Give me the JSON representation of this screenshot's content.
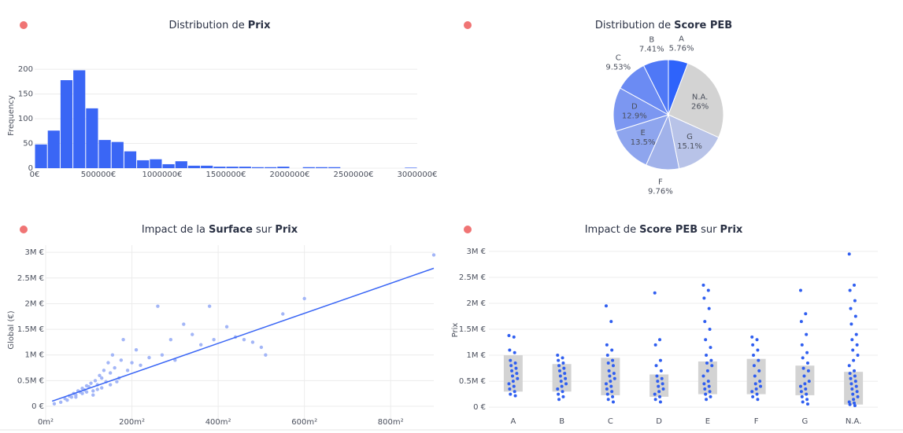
{
  "chart_data": [
    {
      "type": "histogram",
      "title_parts": [
        {
          "text": "Distribution de",
          "bold": false
        },
        {
          "text": "Prix",
          "bold": true
        }
      ],
      "ylabel": "Frequency",
      "color": "#3a66f5",
      "grid": true,
      "bins": [
        0,
        100000,
        200000,
        300000,
        400000,
        500000,
        600000,
        700000,
        800000,
        900000,
        1000000,
        1100000,
        1200000,
        1300000,
        1400000,
        1500000,
        1600000,
        1700000,
        1800000,
        1900000,
        2000000,
        2100000,
        2200000,
        2300000,
        2400000,
        2500000,
        2600000,
        2700000,
        2800000,
        2900000,
        3000000
      ],
      "counts": [
        48,
        76,
        178,
        198,
        121,
        57,
        53,
        34,
        16,
        18,
        8,
        14,
        5,
        5,
        3,
        3,
        3,
        2,
        2,
        3,
        0,
        2,
        2,
        2,
        0,
        0,
        0,
        0,
        0,
        1
      ],
      "xlim": [
        0,
        3000000
      ],
      "xticks": [
        {
          "value": 0,
          "label": "0€"
        },
        {
          "value": 500000,
          "label": "500000€"
        },
        {
          "value": 1000000,
          "label": "1000000€"
        },
        {
          "value": 1500000,
          "label": "1500000€"
        },
        {
          "value": 2000000,
          "label": "2000000€"
        },
        {
          "value": 2500000,
          "label": "2500000€"
        },
        {
          "value": 3000000,
          "label": "3000000€"
        }
      ],
      "ylim": [
        0,
        213
      ],
      "yticks": [
        0,
        50,
        100,
        150,
        200
      ]
    },
    {
      "type": "pie",
      "title_parts": [
        {
          "text": "Distribution de",
          "bold": false
        },
        {
          "text": "Score PEB",
          "bold": true
        }
      ],
      "categories": [
        "A",
        "N.A.",
        "G",
        "F",
        "E",
        "D",
        "C",
        "B"
      ],
      "values": [
        5.76,
        26,
        15.1,
        9.76,
        13.5,
        12.9,
        9.53,
        7.41
      ],
      "value_labels": [
        "5.76%",
        "26%",
        "15.1%",
        "9.76%",
        "13.5%",
        "12.9%",
        "9.53%",
        "7.41%"
      ],
      "colors": [
        "#2e63fb",
        "#d3d3d3",
        "#b8c3e8",
        "#a1b2ea",
        "#8ea5ee",
        "#7c97f1",
        "#6b8bf3",
        "#4f78f6"
      ]
    },
    {
      "type": "scatter",
      "title_parts": [
        {
          "text": "Impact de la",
          "bold": false
        },
        {
          "text": "Surface",
          "bold": true
        },
        {
          "text": "sur",
          "bold": false
        },
        {
          "text": "Prix",
          "bold": true
        }
      ],
      "ylabel": "Global (€)",
      "color": "#a3b6f7",
      "line_color": "#3a66f5",
      "grid": true,
      "xgrid": true,
      "x": [
        20,
        35,
        45,
        50,
        55,
        60,
        65,
        70,
        75,
        80,
        85,
        90,
        95,
        100,
        105,
        110,
        115,
        120,
        125,
        130,
        135,
        140,
        145,
        150,
        155,
        160,
        170,
        175,
        180,
        190,
        200,
        210,
        220,
        240,
        260,
        270,
        290,
        300,
        320,
        340,
        360,
        380,
        390,
        420,
        440,
        460,
        480,
        500,
        510,
        550,
        600,
        900,
        110,
        95,
        130,
        150,
        85,
        70,
        120,
        165
      ],
      "y": [
        50000,
        80000,
        150000,
        120000,
        200000,
        180000,
        250000,
        220000,
        300000,
        280000,
        350000,
        320000,
        400000,
        380000,
        450000,
        300000,
        500000,
        420000,
        600000,
        550000,
        700000,
        480000,
        850000,
        650000,
        1000000,
        750000,
        550000,
        900000,
        1300000,
        700000,
        850000,
        1100000,
        800000,
        950000,
        1950000,
        1000000,
        1300000,
        900000,
        1600000,
        1400000,
        1200000,
        1950000,
        1300000,
        1550000,
        1350000,
        1300000,
        1250000,
        1150000,
        1000000,
        1800000,
        2100000,
        2950000,
        220000,
        280000,
        360000,
        420000,
        250000,
        180000,
        330000,
        480000
      ],
      "trendline": {
        "x": [
          15,
          900
        ],
        "y": [
          100000,
          2690000
        ]
      },
      "xlim": [
        0,
        900
      ],
      "xticks": [
        {
          "value": 0,
          "label": "0m²"
        },
        {
          "value": 200,
          "label": "200m²"
        },
        {
          "value": 400,
          "label": "400m²"
        },
        {
          "value": 600,
          "label": "600m²"
        },
        {
          "value": 800,
          "label": "800m²"
        }
      ],
      "ylim": [
        -275000,
        3140000
      ],
      "yticks": [
        {
          "value": 0,
          "label": "0 €"
        },
        {
          "value": 500000,
          "label": "0.5M €"
        },
        {
          "value": 1000000,
          "label": "1M €"
        },
        {
          "value": 1500000,
          "label": "1.5M €"
        },
        {
          "value": 2000000,
          "label": "2M €"
        },
        {
          "value": 2500000,
          "label": "2.5M €"
        },
        {
          "value": 3000000,
          "label": "3M €"
        }
      ]
    },
    {
      "type": "box",
      "title_parts": [
        {
          "text": "Impact de",
          "bold": false
        },
        {
          "text": "Score PEB",
          "bold": true
        },
        {
          "text": "sur",
          "bold": false
        },
        {
          "text": "Prix",
          "bold": true
        }
      ],
      "ylabel": "Prix",
      "color": "#2f5ef0",
      "box_color": "#d3d3d3",
      "grid": true,
      "categories": [
        "A",
        "B",
        "C",
        "D",
        "E",
        "F",
        "G",
        "N.A."
      ],
      "q1": [
        300000,
        300000,
        230000,
        200000,
        250000,
        250000,
        230000,
        50000
      ],
      "q3": [
        1000000,
        830000,
        950000,
        630000,
        880000,
        930000,
        800000,
        680000
      ],
      "points": [
        [
          1380000,
          1350000,
          1100000,
          1050000,
          900000,
          850000,
          800000,
          750000,
          700000,
          650000,
          600000,
          550000,
          500000,
          450000,
          400000,
          350000,
          300000,
          250000,
          220000
        ],
        [
          1000000,
          950000,
          900000,
          850000,
          800000,
          750000,
          700000,
          650000,
          600000,
          550000,
          500000,
          450000,
          400000,
          350000,
          300000,
          250000,
          200000,
          150000
        ],
        [
          1950000,
          1650000,
          1200000,
          1100000,
          1000000,
          900000,
          850000,
          800000,
          700000,
          650000,
          600000,
          550000,
          500000,
          450000,
          400000,
          350000,
          300000,
          250000,
          200000,
          150000,
          100000
        ],
        [
          2200000,
          1300000,
          1200000,
          900000,
          800000,
          700000,
          600000,
          550000,
          500000,
          450000,
          400000,
          350000,
          300000,
          250000,
          200000,
          150000,
          100000
        ],
        [
          2350000,
          2250000,
          2100000,
          1900000,
          1650000,
          1500000,
          1300000,
          1150000,
          1000000,
          900000,
          850000,
          800000,
          700000,
          600000,
          500000,
          450000,
          400000,
          350000,
          300000,
          250000,
          200000,
          150000
        ],
        [
          1350000,
          1300000,
          1200000,
          1100000,
          1000000,
          900000,
          800000,
          700000,
          600000,
          500000,
          450000,
          400000,
          350000,
          300000,
          250000,
          200000,
          150000
        ],
        [
          2250000,
          1800000,
          1650000,
          1400000,
          1200000,
          1050000,
          950000,
          850000,
          750000,
          700000,
          600000,
          500000,
          450000,
          400000,
          350000,
          300000,
          250000,
          200000,
          150000,
          100000,
          60000
        ],
        [
          2950000,
          2350000,
          2250000,
          2050000,
          1900000,
          1750000,
          1600000,
          1400000,
          1300000,
          1200000,
          1100000,
          1000000,
          900000,
          800000,
          700000,
          650000,
          600000,
          550000,
          500000,
          450000,
          400000,
          350000,
          300000,
          250000,
          200000,
          150000,
          100000,
          80000,
          50000,
          30000
        ]
      ],
      "ylim": [
        -180000,
        3120000
      ],
      "yticks": [
        {
          "value": 0,
          "label": "0 €"
        },
        {
          "value": 500000,
          "label": "0.5M €"
        },
        {
          "value": 1000000,
          "label": "1M €"
        },
        {
          "value": 1500000,
          "label": "1.5M €"
        },
        {
          "value": 2000000,
          "label": "2M €"
        },
        {
          "value": 2500000,
          "label": "2.5M €"
        },
        {
          "value": 3000000,
          "label": "3M €"
        }
      ]
    }
  ]
}
